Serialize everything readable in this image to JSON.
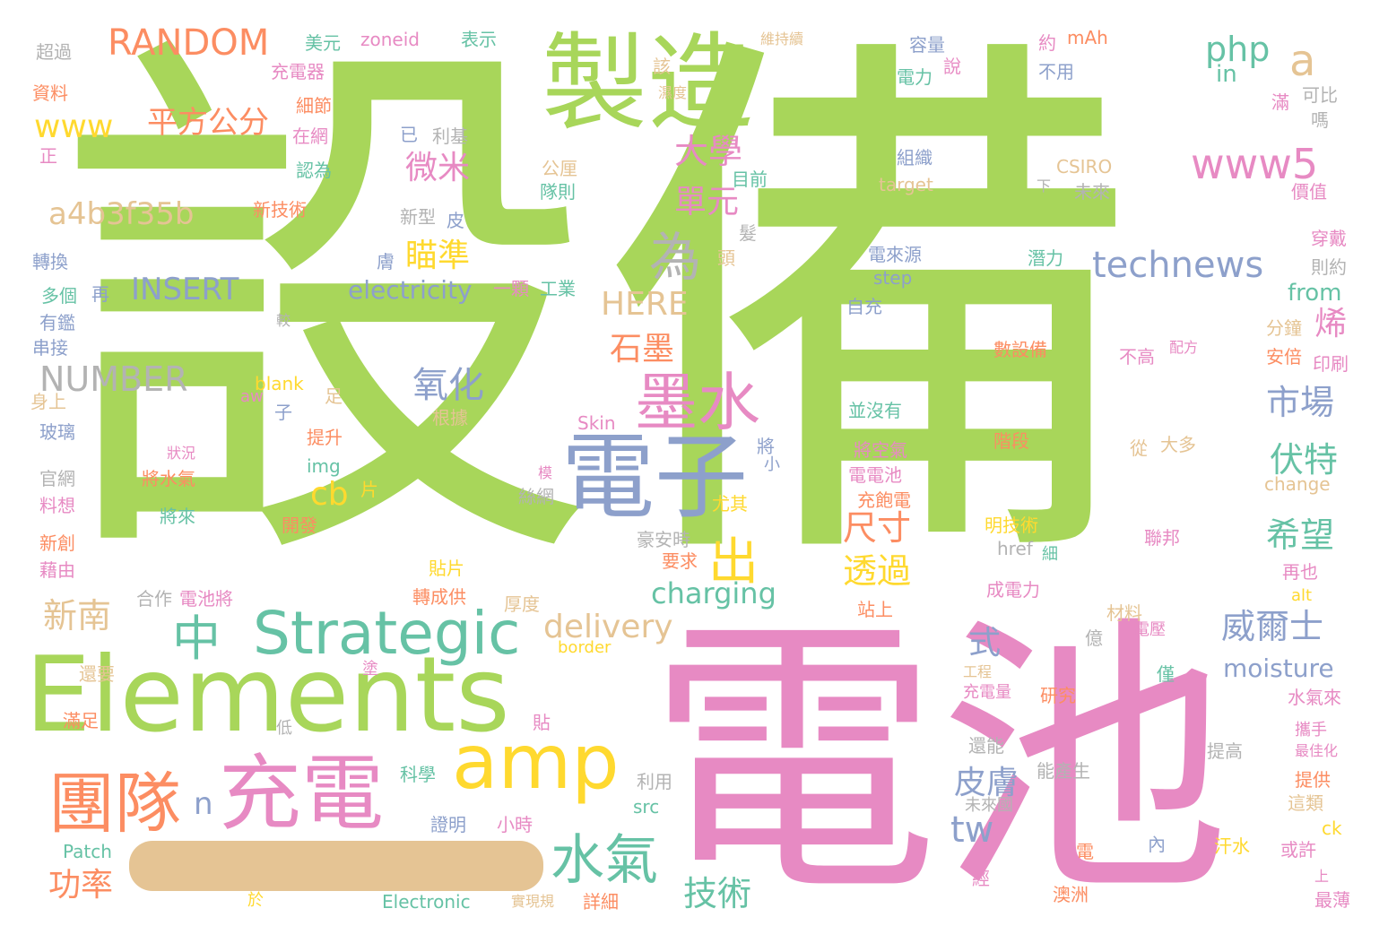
{
  "colors": {
    "green": "#a8d65a",
    "pink": "#e78ac3",
    "blue": "#8da0cb",
    "yellow": "#ffd92f",
    "orange": "#fc8d62",
    "teal": "#66c2a5",
    "tan": "#e5c494",
    "gray": "#b3b3b3"
  },
  "words": [
    {
      "text": "設備",
      "c": "green"
    },
    {
      "text": "電池",
      "c": "pink"
    },
    {
      "text": "Elements",
      "c": "green"
    },
    {
      "text": "製造",
      "c": "green"
    },
    {
      "text": "電子",
      "c": "blue"
    },
    {
      "text": "充電",
      "c": "pink"
    },
    {
      "text": "amp",
      "c": "yellow"
    },
    {
      "text": "Strategic",
      "c": "teal"
    },
    {
      "text": "墨水",
      "c": "pink"
    },
    {
      "text": "團隊",
      "c": "orange"
    },
    {
      "text": "水氣",
      "c": "teal"
    },
    {
      "text": "RANDOM",
      "c": "orange"
    },
    {
      "text": "www5",
      "c": "pink"
    },
    {
      "text": "technews",
      "c": "blue"
    },
    {
      "text": "平方公分",
      "c": "orange"
    },
    {
      "text": "www",
      "c": "yellow"
    },
    {
      "text": "a4b3f35b",
      "c": "tan"
    },
    {
      "text": "INSERT",
      "c": "blue"
    },
    {
      "text": "NUMBER",
      "c": "gray"
    },
    {
      "text": "為",
      "c": "gray"
    },
    {
      "text": "中",
      "c": "teal"
    },
    {
      "text": "出",
      "c": "yellow"
    },
    {
      "text": "php",
      "c": "teal"
    },
    {
      "text": "a",
      "c": "tan"
    },
    {
      "text": "大學",
      "c": "pink"
    },
    {
      "text": "微米",
      "c": "pink"
    },
    {
      "text": "單元",
      "c": "pink"
    },
    {
      "text": "瞄準",
      "c": "yellow"
    },
    {
      "text": "HERE",
      "c": "tan"
    },
    {
      "text": "electricity",
      "c": "blue"
    },
    {
      "text": "石墨",
      "c": "orange"
    },
    {
      "text": "氧化",
      "c": "blue"
    },
    {
      "text": "cb",
      "c": "yellow"
    },
    {
      "text": "市場",
      "c": "blue"
    },
    {
      "text": "伏特",
      "c": "teal"
    },
    {
      "text": "希望",
      "c": "teal"
    },
    {
      "text": "尺寸",
      "c": "orange"
    },
    {
      "text": "透過",
      "c": "yellow"
    },
    {
      "text": "charging",
      "c": "teal"
    },
    {
      "text": "delivery",
      "c": "tan"
    },
    {
      "text": "威爾士",
      "c": "blue"
    },
    {
      "text": "moisture",
      "c": "blue"
    },
    {
      "text": "式",
      "c": "blue"
    },
    {
      "text": "皮膚",
      "c": "blue"
    },
    {
      "text": "tw",
      "c": "blue"
    },
    {
      "text": "技術",
      "c": "teal"
    },
    {
      "text": "新南",
      "c": "tan"
    },
    {
      "text": "功率",
      "c": "orange"
    },
    {
      "text": "n",
      "c": "blue"
    },
    {
      "text": "烯",
      "c": "pink"
    },
    {
      "text": "from",
      "c": "teal"
    },
    {
      "text": "in",
      "c": "teal"
    },
    {
      "text": "zoneid",
      "c": "pink"
    },
    {
      "text": "表示",
      "c": "teal"
    },
    {
      "text": "美元",
      "c": "teal"
    },
    {
      "text": "充電器",
      "c": "pink"
    },
    {
      "text": "細節",
      "c": "orange"
    },
    {
      "text": "在網",
      "c": "pink"
    },
    {
      "text": "認為",
      "c": "teal"
    },
    {
      "text": "新技術",
      "c": "orange"
    },
    {
      "text": "超過",
      "c": "gray"
    },
    {
      "text": "資料",
      "c": "orange"
    },
    {
      "text": "正",
      "c": "pink"
    },
    {
      "text": "轉換",
      "c": "blue"
    },
    {
      "text": "多個",
      "c": "teal"
    },
    {
      "text": "再",
      "c": "blue"
    },
    {
      "text": "有鑑",
      "c": "blue"
    },
    {
      "text": "串接",
      "c": "blue"
    },
    {
      "text": "身上",
      "c": "tan"
    },
    {
      "text": "玻璃",
      "c": "blue"
    },
    {
      "text": "官網",
      "c": "gray"
    },
    {
      "text": "料想",
      "c": "pink"
    },
    {
      "text": "新創",
      "c": "orange"
    },
    {
      "text": "藉由",
      "c": "pink"
    },
    {
      "text": "還要",
      "c": "tan"
    },
    {
      "text": "滿足",
      "c": "orange"
    },
    {
      "text": "容量",
      "c": "blue"
    },
    {
      "text": "電力",
      "c": "teal"
    },
    {
      "text": "約",
      "c": "pink"
    },
    {
      "text": "mAh",
      "c": "orange"
    },
    {
      "text": "不用",
      "c": "blue"
    },
    {
      "text": "組織",
      "c": "blue"
    },
    {
      "text": "目前",
      "c": "teal"
    },
    {
      "text": "CSIRO",
      "c": "tan"
    },
    {
      "text": "target",
      "c": "tan"
    },
    {
      "text": "未來",
      "c": "gray"
    },
    {
      "text": "價值",
      "c": "pink"
    },
    {
      "text": "穿戴",
      "c": "pink"
    },
    {
      "text": "則約",
      "c": "gray"
    },
    {
      "text": "分鐘",
      "c": "tan"
    },
    {
      "text": "安倍",
      "c": "orange"
    },
    {
      "text": "印刷",
      "c": "pink"
    },
    {
      "text": "電來源",
      "c": "blue"
    },
    {
      "text": "step",
      "c": "blue"
    },
    {
      "text": "自充",
      "c": "blue"
    },
    {
      "text": "潛力",
      "c": "teal"
    },
    {
      "text": "數設備",
      "c": "orange"
    },
    {
      "text": "不高",
      "c": "pink"
    },
    {
      "text": "並沒有",
      "c": "teal"
    },
    {
      "text": "階段",
      "c": "orange"
    },
    {
      "text": "將空氣",
      "c": "pink"
    },
    {
      "text": "電電池",
      "c": "pink"
    },
    {
      "text": "充飽電",
      "c": "orange"
    },
    {
      "text": "明技術",
      "c": "yellow"
    },
    {
      "text": "href",
      "c": "gray"
    },
    {
      "text": "聯邦",
      "c": "pink"
    },
    {
      "text": "成電力",
      "c": "pink"
    },
    {
      "text": "材料",
      "c": "tan"
    },
    {
      "text": "電壓",
      "c": "pink"
    },
    {
      "text": "研究",
      "c": "orange"
    },
    {
      "text": "水氣來",
      "c": "pink"
    },
    {
      "text": "提高",
      "c": "gray"
    },
    {
      "text": "攜手",
      "c": "pink"
    },
    {
      "text": "提供",
      "c": "orange"
    },
    {
      "text": "這類",
      "c": "tan"
    },
    {
      "text": "或許",
      "c": "pink"
    },
    {
      "text": "汗水",
      "c": "yellow"
    },
    {
      "text": "澳洲",
      "c": "orange"
    },
    {
      "text": "最薄",
      "c": "pink"
    },
    {
      "text": "change",
      "c": "tan"
    },
    {
      "text": "再也",
      "c": "pink"
    },
    {
      "text": "alt",
      "c": "yellow"
    },
    {
      "text": "大多",
      "c": "tan"
    },
    {
      "text": "從",
      "c": "tan"
    },
    {
      "text": "blank",
      "c": "yellow"
    },
    {
      "text": "aw",
      "c": "pink"
    },
    {
      "text": "提升",
      "c": "orange"
    },
    {
      "text": "img",
      "c": "teal"
    },
    {
      "text": "將水氣",
      "c": "orange"
    },
    {
      "text": "將來",
      "c": "teal"
    },
    {
      "text": "開發",
      "c": "orange"
    },
    {
      "text": "尤其",
      "c": "yellow"
    },
    {
      "text": "豪安時",
      "c": "gray"
    },
    {
      "text": "要求",
      "c": "orange"
    },
    {
      "text": "Skin",
      "c": "pink"
    },
    {
      "text": "根據",
      "c": "tan"
    },
    {
      "text": "一顆",
      "c": "pink"
    },
    {
      "text": "工業",
      "c": "teal"
    },
    {
      "text": "合作",
      "c": "gray"
    },
    {
      "text": "電池將",
      "c": "pink"
    },
    {
      "text": "轉成供",
      "c": "orange"
    },
    {
      "text": "厚度",
      "c": "tan"
    },
    {
      "text": "貼片",
      "c": "yellow"
    },
    {
      "text": "border",
      "c": "yellow"
    },
    {
      "text": "科學",
      "c": "teal"
    },
    {
      "text": "證明",
      "c": "blue"
    },
    {
      "text": "小時",
      "c": "pink"
    },
    {
      "text": "利用",
      "c": "gray"
    },
    {
      "text": "src",
      "c": "teal"
    },
    {
      "text": "Patch",
      "c": "teal"
    },
    {
      "text": "Electronic",
      "c": "teal"
    },
    {
      "text": "詳細",
      "c": "orange"
    },
    {
      "text": "實現規",
      "c": "tan"
    },
    {
      "text": "能產生",
      "c": "gray"
    },
    {
      "text": "未來國",
      "c": "gray"
    },
    {
      "text": "電",
      "c": "orange"
    },
    {
      "text": "內",
      "c": "blue"
    },
    {
      "text": "經",
      "c": "pink"
    },
    {
      "text": "還能",
      "c": "gray"
    },
    {
      "text": "充電量",
      "c": "pink"
    },
    {
      "text": "工程",
      "c": "tan"
    },
    {
      "text": "最佳化",
      "c": "pink"
    },
    {
      "text": "可比",
      "c": "gray"
    },
    {
      "text": "嗎",
      "c": "gray"
    },
    {
      "text": "滿",
      "c": "pink"
    },
    {
      "text": "已",
      "c": "blue"
    },
    {
      "text": "利基",
      "c": "gray"
    },
    {
      "text": "新型",
      "c": "gray"
    },
    {
      "text": "皮",
      "c": "blue"
    },
    {
      "text": "公厘",
      "c": "tan"
    },
    {
      "text": "隊則",
      "c": "teal"
    },
    {
      "text": "絲網",
      "c": "gray"
    },
    {
      "text": "膚",
      "c": "blue"
    },
    {
      "text": "頭",
      "c": "tan"
    },
    {
      "text": "髮",
      "c": "gray"
    },
    {
      "text": "ck",
      "c": "yellow"
    },
    {
      "text": "上",
      "c": "pink"
    },
    {
      "text": "僅",
      "c": "teal"
    },
    {
      "text": "億",
      "c": "gray"
    },
    {
      "text": "足",
      "c": "tan"
    },
    {
      "text": "子",
      "c": "blue"
    },
    {
      "text": "片",
      "c": "yellow"
    },
    {
      "text": "低",
      "c": "gray"
    },
    {
      "text": "貼",
      "c": "pink"
    },
    {
      "text": "塗",
      "c": "pink"
    },
    {
      "text": "站上",
      "c": "orange"
    },
    {
      "text": "細",
      "c": "teal"
    },
    {
      "text": "配方",
      "c": "pink"
    },
    {
      "text": "說",
      "c": "pink"
    },
    {
      "text": "該",
      "c": "tan"
    },
    {
      "text": "維持續",
      "c": "tan"
    },
    {
      "text": "濕度",
      "c": "tan"
    },
    {
      "text": "下",
      "c": "gray"
    },
    {
      "text": "將",
      "c": "blue"
    },
    {
      "text": "小",
      "c": "blue"
    },
    {
      "text": "狀況",
      "c": "pink"
    },
    {
      "text": "模",
      "c": "pink"
    },
    {
      "text": "於",
      "c": "yellow"
    },
    {
      "text": "較",
      "c": "gray"
    }
  ]
}
